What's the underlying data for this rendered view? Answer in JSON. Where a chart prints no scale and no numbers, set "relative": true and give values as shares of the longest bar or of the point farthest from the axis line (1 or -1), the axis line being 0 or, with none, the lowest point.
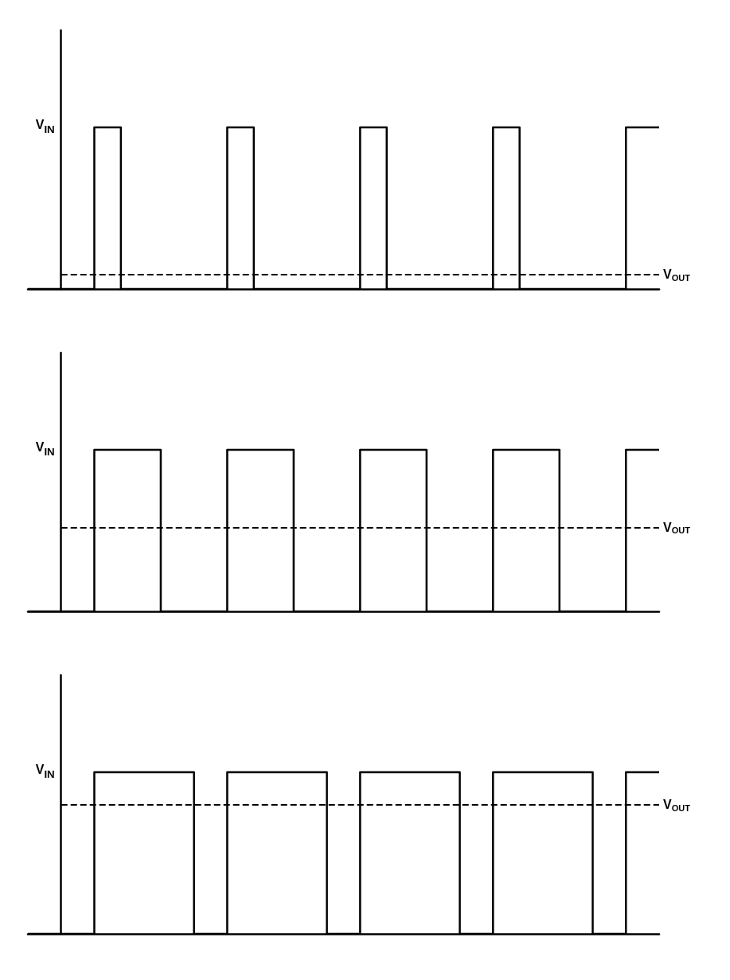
{
  "chart_data": [
    {
      "type": "step",
      "relative": true,
      "grid": false,
      "line_style": "solid",
      "categories": [
        null,
        null,
        null,
        null,
        null,
        null,
        null,
        null,
        null,
        null,
        null,
        null,
        null,
        null,
        null,
        null,
        null,
        null,
        null,
        null,
        null,
        null,
        null,
        null,
        null,
        null,
        null,
        null,
        null,
        null,
        null,
        null,
        null,
        null,
        null,
        null,
        null,
        null,
        null,
        null,
        null,
        null,
        null,
        null,
        null,
        null,
        null,
        null,
        null,
        null,
        null,
        null,
        null,
        null,
        null,
        null,
        null,
        null,
        null,
        null,
        null,
        null,
        null,
        null,
        null,
        null,
        null,
        null,
        null,
        null,
        null,
        null,
        null,
        null,
        null,
        null,
        null,
        null,
        null,
        null,
        null,
        null,
        null,
        null,
        null,
        null,
        null,
        null,
        null,
        null,
        null,
        null,
        null,
        null,
        null,
        null
      ],
      "series": [
        {
          "color": "#000000",
          "values": [
            0,
            0,
            0,
            0,
            0,
            0,
            0,
            0,
            0,
            0,
            1,
            1,
            1,
            1,
            0,
            0,
            0,
            0,
            0,
            0,
            0,
            0,
            0,
            0,
            0,
            0,
            0,
            0,
            0,
            0,
            1,
            1,
            1,
            1,
            0,
            0,
            0,
            0,
            0,
            0,
            0,
            0,
            0,
            0,
            0,
            0,
            0,
            0,
            0,
            0,
            1,
            1,
            1,
            1,
            0,
            0,
            0,
            0,
            0,
            0,
            0,
            0,
            0,
            0,
            0,
            0,
            0,
            0,
            0,
            0,
            1,
            1,
            1,
            1,
            0,
            0,
            0,
            0,
            0,
            0,
            0,
            0,
            0,
            0,
            0,
            0,
            0,
            0,
            0,
            0,
            1,
            1,
            1,
            1,
            1,
            1
          ]
        }
      ],
      "ref_lines": [
        {
          "axis": "y",
          "value": 0.09,
          "label": "V$_{OUT}$",
          "color": "#000000",
          "line_style": "dashed"
        }
      ],
      "annotations": [
        "V$_{IN}$"
      ]
    },
    {
      "type": "step",
      "relative": true,
      "grid": false,
      "line_style": "solid",
      "categories": [
        null,
        null,
        null,
        null,
        null,
        null,
        null,
        null,
        null,
        null,
        null,
        null,
        null,
        null,
        null,
        null,
        null,
        null,
        null,
        null,
        null,
        null,
        null,
        null,
        null,
        null,
        null,
        null,
        null,
        null,
        null,
        null,
        null,
        null,
        null,
        null,
        null,
        null,
        null,
        null,
        null,
        null,
        null,
        null,
        null,
        null,
        null,
        null,
        null,
        null,
        null,
        null,
        null,
        null,
        null,
        null,
        null,
        null,
        null,
        null,
        null,
        null,
        null,
        null,
        null,
        null,
        null,
        null,
        null,
        null,
        null,
        null,
        null,
        null,
        null,
        null,
        null,
        null,
        null,
        null,
        null,
        null,
        null,
        null,
        null,
        null,
        null,
        null,
        null,
        null,
        null,
        null,
        null,
        null,
        null,
        null
      ],
      "series": [
        {
          "color": "#000000",
          "values": [
            0,
            0,
            0,
            0,
            0,
            0,
            0,
            0,
            0,
            0,
            1,
            1,
            1,
            1,
            1,
            1,
            1,
            1,
            1,
            1,
            0,
            0,
            0,
            0,
            0,
            0,
            0,
            0,
            0,
            0,
            1,
            1,
            1,
            1,
            1,
            1,
            1,
            1,
            1,
            1,
            0,
            0,
            0,
            0,
            0,
            0,
            0,
            0,
            0,
            0,
            1,
            1,
            1,
            1,
            1,
            1,
            1,
            1,
            1,
            1,
            0,
            0,
            0,
            0,
            0,
            0,
            0,
            0,
            0,
            0,
            1,
            1,
            1,
            1,
            1,
            1,
            1,
            1,
            1,
            1,
            0,
            0,
            0,
            0,
            0,
            0,
            0,
            0,
            0,
            0,
            1,
            1,
            1,
            1,
            1,
            1
          ]
        }
      ],
      "ref_lines": [
        {
          "axis": "y",
          "value": 0.52,
          "label": "V$_{OUT}$",
          "color": "#000000",
          "line_style": "dashed"
        }
      ],
      "annotations": [
        "V$_{IN}$"
      ]
    },
    {
      "type": "step",
      "relative": true,
      "grid": false,
      "line_style": "solid",
      "categories": [
        null,
        null,
        null,
        null,
        null,
        null,
        null,
        null,
        null,
        null,
        null,
        null,
        null,
        null,
        null,
        null,
        null,
        null,
        null,
        null,
        null,
        null,
        null,
        null,
        null,
        null,
        null,
        null,
        null,
        null,
        null,
        null,
        null,
        null,
        null,
        null,
        null,
        null,
        null,
        null,
        null,
        null,
        null,
        null,
        null,
        null,
        null,
        null,
        null,
        null,
        null,
        null,
        null,
        null,
        null,
        null,
        null,
        null,
        null,
        null,
        null,
        null,
        null,
        null,
        null,
        null,
        null,
        null,
        null,
        null,
        null,
        null,
        null,
        null,
        null,
        null,
        null,
        null,
        null,
        null,
        null,
        null,
        null,
        null,
        null,
        null,
        null,
        null,
        null,
        null,
        null,
        null,
        null,
        null,
        null,
        null
      ],
      "series": [
        {
          "color": "#000000",
          "values": [
            0,
            0,
            0,
            0,
            0,
            0,
            0,
            0,
            0,
            0,
            1,
            1,
            1,
            1,
            1,
            1,
            1,
            1,
            1,
            1,
            1,
            1,
            1,
            1,
            1,
            0,
            0,
            0,
            0,
            0,
            1,
            1,
            1,
            1,
            1,
            1,
            1,
            1,
            1,
            1,
            1,
            1,
            1,
            1,
            1,
            0,
            0,
            0,
            0,
            0,
            1,
            1,
            1,
            1,
            1,
            1,
            1,
            1,
            1,
            1,
            1,
            1,
            1,
            1,
            1,
            0,
            0,
            0,
            0,
            0,
            1,
            1,
            1,
            1,
            1,
            1,
            1,
            1,
            1,
            1,
            1,
            1,
            1,
            1,
            1,
            0,
            0,
            0,
            0,
            0,
            1,
            1,
            1,
            1,
            1,
            1
          ]
        }
      ],
      "ref_lines": [
        {
          "axis": "y",
          "value": 0.8,
          "label": "V$_{OUT}$",
          "color": "#000000",
          "line_style": "dashed"
        }
      ],
      "annotations": [
        "V$_{IN}$"
      ]
    }
  ]
}
